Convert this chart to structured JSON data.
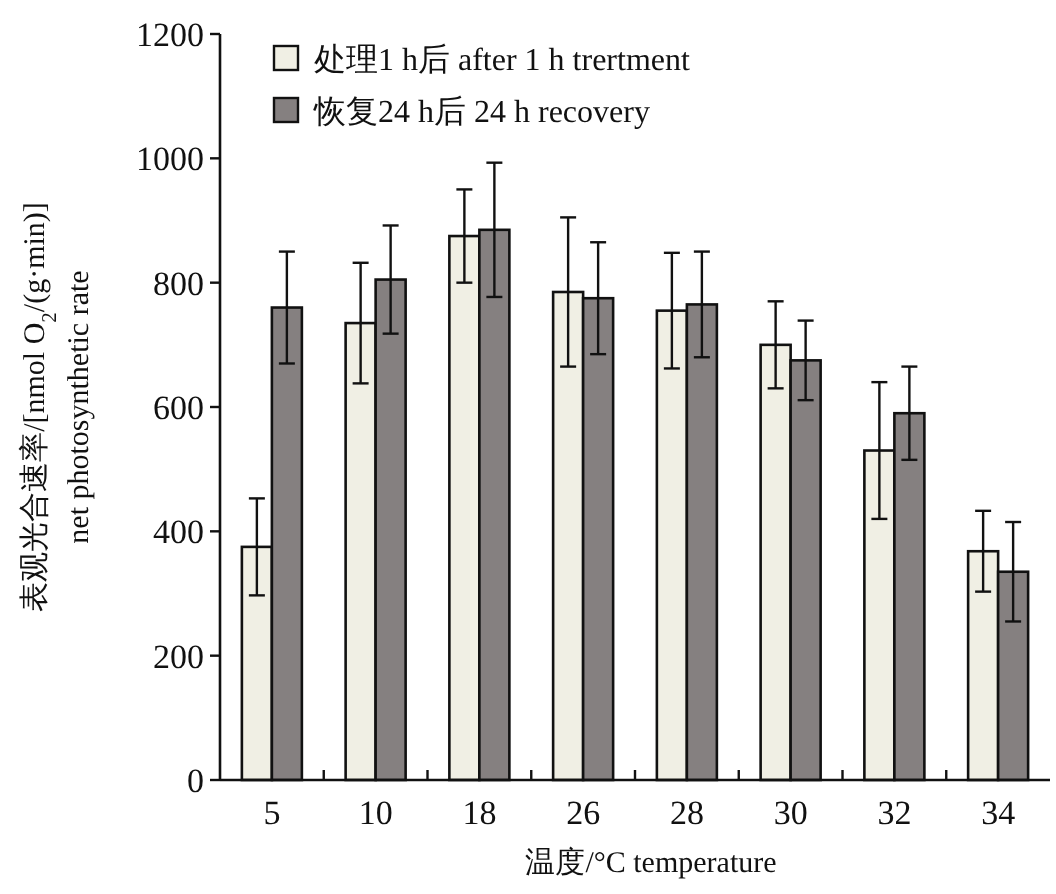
{
  "chart_data": {
    "type": "bar",
    "xlabel": "温度/°C  temperature",
    "ylabel": "表观光合速率/[nmol O$_{2}$/(g·min)]\nnet photosynthetic rate",
    "categories": [
      "5",
      "10",
      "18",
      "26",
      "28",
      "30",
      "32",
      "34"
    ],
    "series": [
      {
        "name": "处理1 h后  after 1 h trertment",
        "color": "#f0efe4",
        "values": [
          375,
          735,
          875,
          785,
          755,
          700,
          530,
          368
        ],
        "errors": [
          78,
          97,
          75,
          120,
          93,
          70,
          110,
          65
        ]
      },
      {
        "name": "恢复24 h后  24 h recovery",
        "color": "#858080",
        "values": [
          760,
          805,
          885,
          775,
          765,
          675,
          590,
          335
        ],
        "errors": [
          90,
          87,
          108,
          90,
          85,
          64,
          75,
          80
        ]
      }
    ],
    "ylim": [
      0,
      1200
    ],
    "yticks": [
      0,
      200,
      400,
      600,
      800,
      1000,
      1200
    ],
    "legend": "top left",
    "grid": false
  }
}
